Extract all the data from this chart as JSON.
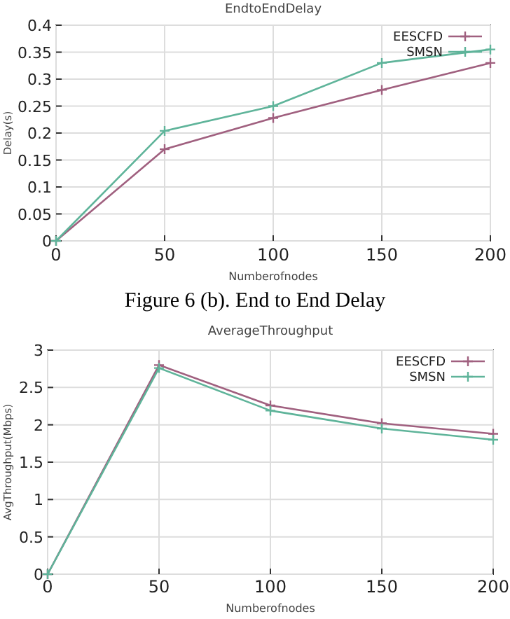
{
  "chart_data": [
    {
      "type": "line",
      "title": "EndtoEndDelay",
      "xlabel": "Numberofnodes",
      "ylabel": "Delay(s)",
      "x": [
        0,
        50,
        100,
        150,
        200
      ],
      "xlim": [
        0,
        200
      ],
      "xticks": [
        0,
        50,
        100,
        150,
        200
      ],
      "ylim": [
        0,
        0.4
      ],
      "yticks": [
        0,
        0.05,
        0.1,
        0.15,
        0.2,
        0.25,
        0.3,
        0.35,
        0.4
      ],
      "grid": true,
      "legend": "top right",
      "marker": "cross",
      "annotations": [
        "Figure 6 (b).  End to End Delay"
      ],
      "series": [
        {
          "name": "EESCFD",
          "color": "#a0607f",
          "values": [
            0,
            0.17,
            0.228,
            0.28,
            0.33
          ]
        },
        {
          "name": "SMSN",
          "color": "#5fb49a",
          "values": [
            0,
            0.204,
            0.25,
            0.33,
            0.355
          ]
        }
      ]
    },
    {
      "type": "line",
      "title": "AverageThroughput",
      "xlabel": "Numberofnodes",
      "ylabel": "AvgThroughput(Mbps)",
      "x": [
        0,
        50,
        100,
        150,
        200
      ],
      "xlim": [
        0,
        200
      ],
      "xticks": [
        0,
        50,
        100,
        150,
        200
      ],
      "ylim": [
        0,
        3
      ],
      "yticks": [
        0,
        0.5,
        1,
        1.5,
        2,
        2.5,
        3
      ],
      "grid": true,
      "legend": "top right",
      "marker": "cross",
      "series": [
        {
          "name": "EESCFD",
          "color": "#a0607f",
          "values": [
            0,
            2.8,
            2.26,
            2.02,
            1.88
          ]
        },
        {
          "name": "SMSN",
          "color": "#5fb49a",
          "values": [
            0,
            2.76,
            2.19,
            1.95,
            1.8
          ]
        }
      ]
    }
  ]
}
